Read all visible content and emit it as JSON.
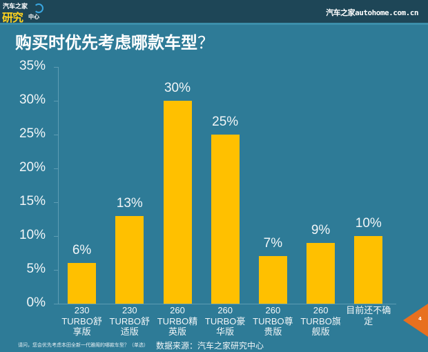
{
  "header": {
    "logo": {
      "line1": "汽车之家",
      "line2": "研究",
      "line3": "中心"
    },
    "site": "汽车之家autohome.com.cn"
  },
  "title": {
    "text": "购买时优先考虑哪款车型",
    "suffix": "？"
  },
  "footer": {
    "question": "请问，您会优先考虑本田全新一代雅阁的哪款车型？（单选）",
    "source": "数据来源：汽车之家研究中心",
    "page_number": "4"
  },
  "colors": {
    "background": "#2e7b97",
    "header": "#1e4657",
    "bar": "#ffc000",
    "page_tab": "#e8701f"
  },
  "chart_data": {
    "type": "bar",
    "title": "购买时优先考虑哪款车型？",
    "xlabel": "",
    "ylabel": "",
    "ylim": [
      0,
      35
    ],
    "yticks": [
      "0%",
      "5%",
      "10%",
      "15%",
      "20%",
      "25%",
      "30%",
      "35%"
    ],
    "grid": false,
    "legend": null,
    "categories": [
      "230 TURBO舒享版",
      "230 TURBO舒适版",
      "260 TURBO精英版",
      "260 TURBO豪华版",
      "260 TURBO尊贵版",
      "260 TURBO旗舰版",
      "目前还不确定"
    ],
    "category_display": [
      "230\nTURBO舒\n享版",
      "230\nTURBO舒\n适版",
      "260\nTURBO精\n英版",
      "260\nTURBO豪\n华版",
      "260\nTURBO尊\n贵版",
      "260\nTURBO旗\n舰版",
      "目前还不确\n定"
    ],
    "values": [
      6,
      13,
      30,
      25,
      7,
      9,
      10
    ],
    "value_labels": [
      "6%",
      "13%",
      "30%",
      "25%",
      "7%",
      "9%",
      "10%"
    ],
    "annotations": [
      "数据来源：汽车之家研究中心"
    ]
  }
}
